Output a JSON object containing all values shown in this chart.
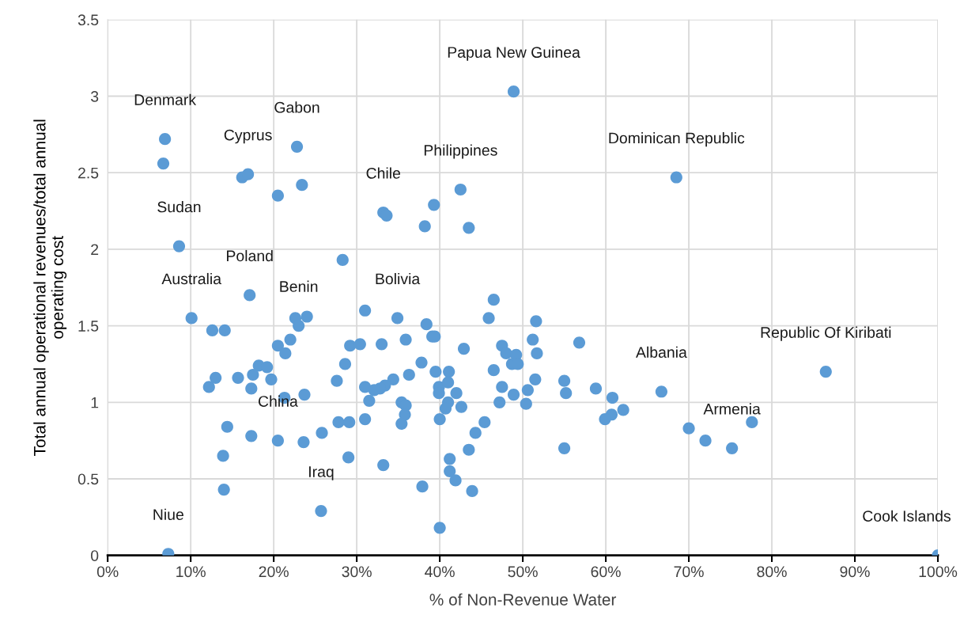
{
  "chart_data": {
    "type": "scatter",
    "xlabel": "% of Non-Revenue Water",
    "ylabel": "Total annual operational revenues/total annual\noperating cost",
    "xlim": [
      0,
      100
    ],
    "ylim": [
      0,
      3.5
    ],
    "xticks": [
      {
        "value": 0,
        "label": "0%"
      },
      {
        "value": 10,
        "label": "10%"
      },
      {
        "value": 20,
        "label": "20%"
      },
      {
        "value": 30,
        "label": "30%"
      },
      {
        "value": 40,
        "label": "40%"
      },
      {
        "value": 50,
        "label": "50%"
      },
      {
        "value": 60,
        "label": "60%"
      },
      {
        "value": 70,
        "label": "70%"
      },
      {
        "value": 80,
        "label": "80%"
      },
      {
        "value": 90,
        "label": "90%"
      },
      {
        "value": 100,
        "label": "100%"
      }
    ],
    "yticks": [
      0,
      0.5,
      1,
      1.5,
      2,
      2.5,
      3,
      3.5
    ],
    "grid": true,
    "marker": "circle",
    "series": [
      {
        "color": "#5b9bd5",
        "x": [
          8.6,
          28.3,
          17.1,
          10.1,
          12.6,
          14.1,
          22.6,
          24.0,
          23.0,
          31.0,
          20.5,
          22.0,
          21.4,
          29.2,
          30.4,
          33.0,
          28.6,
          27.6,
          31.0,
          13.0,
          12.2,
          15.7,
          18.2,
          19.2,
          17.5,
          19.7,
          17.3,
          21.3,
          23.7,
          14.4,
          17.3,
          20.5,
          23.6,
          25.8,
          27.8,
          29.1,
          31.0,
          13.9,
          14.0,
          29.0,
          25.7,
          7.3,
          33.2,
          34.9,
          38.4,
          39.1,
          39.4,
          46.5,
          45.9,
          51.6,
          51.2,
          51.7,
          56.8,
          42.9,
          35.9,
          37.8,
          36.3,
          39.5,
          41.1,
          34.4,
          33.4,
          32.8,
          32.1,
          31.5,
          39.9,
          41.0,
          39.9,
          42.0,
          41.0,
          40.7,
          42.6,
          35.4,
          35.9,
          35.8,
          35.4,
          40.0,
          45.4,
          44.3,
          43.5,
          41.2,
          41.2,
          41.9,
          43.9,
          37.9,
          40.0,
          47.5,
          48.0,
          49.2,
          48.7,
          49.4,
          46.5,
          47.5,
          48.9,
          47.2,
          50.6,
          50.4,
          51.5,
          55.0,
          55.2,
          55.0,
          58.8,
          60.8,
          62.1,
          60.7,
          59.9,
          66.7,
          86.5,
          70.0,
          72.0,
          75.2,
          77.6,
          100,
          6.9,
          6.7,
          22.8,
          16.2,
          16.9,
          20.5,
          23.4,
          33.2,
          33.6,
          38.2,
          39.3,
          42.5,
          43.5,
          48.9,
          68.5
        ],
        "values": [
          2.02,
          1.93,
          1.7,
          1.55,
          1.47,
          1.47,
          1.55,
          1.56,
          1.5,
          1.6,
          1.37,
          1.41,
          1.32,
          1.37,
          1.38,
          1.38,
          1.25,
          1.14,
          1.1,
          1.16,
          1.1,
          1.16,
          1.24,
          1.23,
          1.18,
          1.15,
          1.09,
          1.03,
          1.05,
          0.84,
          0.78,
          0.75,
          0.74,
          0.8,
          0.87,
          0.87,
          0.89,
          0.65,
          0.43,
          0.64,
          0.29,
          0.01,
          0.59,
          1.55,
          1.51,
          1.43,
          1.43,
          1.67,
          1.55,
          1.53,
          1.41,
          1.32,
          1.39,
          1.35,
          1.41,
          1.26,
          1.18,
          1.2,
          1.2,
          1.15,
          1.11,
          1.09,
          1.08,
          1.01,
          1.1,
          1.13,
          1.06,
          1.06,
          1.0,
          0.96,
          0.97,
          1.0,
          0.98,
          0.92,
          0.86,
          0.89,
          0.87,
          0.8,
          0.69,
          0.63,
          0.55,
          0.49,
          0.42,
          0.45,
          0.18,
          1.37,
          1.32,
          1.31,
          1.25,
          1.25,
          1.21,
          1.1,
          1.05,
          1.0,
          1.08,
          0.99,
          1.15,
          1.14,
          1.06,
          0.7,
          1.09,
          1.03,
          0.95,
          0.92,
          0.89,
          1.07,
          1.2,
          0.83,
          0.75,
          0.7,
          0.87,
          0,
          2.72,
          2.56,
          2.67,
          2.47,
          2.49,
          2.35,
          2.42,
          2.24,
          2.22,
          2.15,
          2.29,
          2.39,
          2.14,
          3.03,
          2.47
        ]
      }
    ],
    "annotations": [
      {
        "text": "Papua New Guinea",
        "x": 48.9,
        "y": 3.03
      },
      {
        "text": "Denmark",
        "x": 6.9,
        "y": 2.72
      },
      {
        "text": "Gabon",
        "x": 22.8,
        "y": 2.67
      },
      {
        "text": "Cyprus",
        "x": 16.9,
        "y": 2.49
      },
      {
        "text": "Dominican Republic",
        "x": 68.5,
        "y": 2.47
      },
      {
        "text": "Philippines",
        "x": 42.5,
        "y": 2.39
      },
      {
        "text": "Chile",
        "x": 33.2,
        "y": 2.24
      },
      {
        "text": "Sudan",
        "x": 8.6,
        "y": 2.02
      },
      {
        "text": "Poland",
        "x": 17.1,
        "y": 1.7
      },
      {
        "text": "Australia",
        "x": 10.1,
        "y": 1.55
      },
      {
        "text": "Benin",
        "x": 23.0,
        "y": 1.5
      },
      {
        "text": "Bolivia",
        "x": 34.9,
        "y": 1.55
      },
      {
        "text": "Republic Of Kiribati",
        "x": 86.5,
        "y": 1.2
      },
      {
        "text": "Albania",
        "x": 66.7,
        "y": 1.07
      },
      {
        "text": "Armenia",
        "x": 75.2,
        "y": 0.7
      },
      {
        "text": "China",
        "x": 20.5,
        "y": 0.75
      },
      {
        "text": "Iraq",
        "x": 25.7,
        "y": 0.29
      },
      {
        "text": "Niue",
        "x": 7.3,
        "y": 0.01
      },
      {
        "text": "Cook Islands",
        "x": 100,
        "y": 0
      }
    ]
  }
}
